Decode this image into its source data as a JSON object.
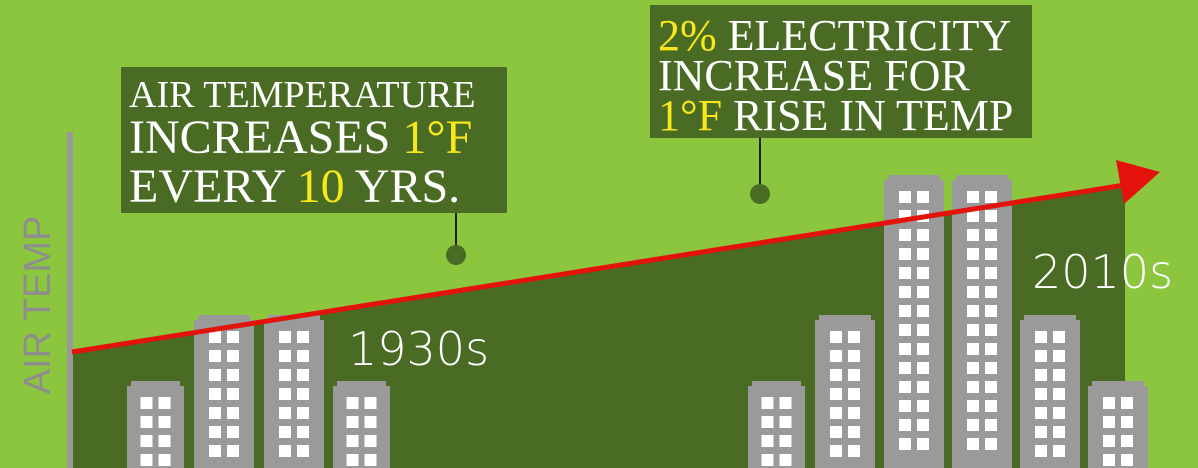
{
  "axis_label": "AIR TEMP",
  "callouts": [
    {
      "lines": [
        [
          "AIR TEMPERATURE"
        ],
        [
          "INCREASES",
          "1°F"
        ],
        [
          "EVERY",
          "10",
          "YRS."
        ]
      ]
    },
    {
      "lines": [
        [
          "2%",
          "ELECTRICITY"
        ],
        [
          "INCREASE FOR"
        ],
        [
          "1°F",
          "RISE IN TEMP"
        ]
      ]
    }
  ],
  "eras": [
    "1930s",
    "2010s"
  ]
}
